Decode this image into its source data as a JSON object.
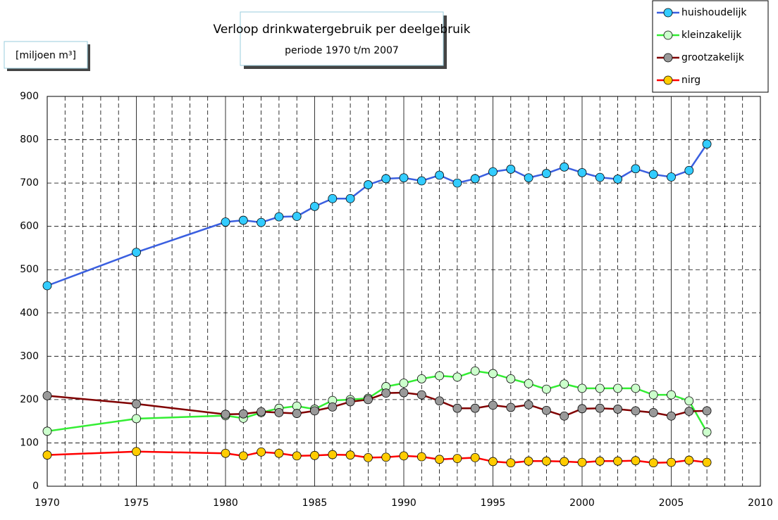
{
  "chart_data": {
    "type": "line",
    "title": "Verloop drinkwatergebruik per deelgebruik",
    "subtitle": "periode 1970 t/m 2007",
    "ylabel": "[miljoen m³]",
    "x": [
      1970,
      1975,
      1980,
      1981,
      1982,
      1983,
      1984,
      1985,
      1986,
      1987,
      1988,
      1989,
      1990,
      1991,
      1992,
      1993,
      1994,
      1995,
      1996,
      1997,
      1998,
      1999,
      2000,
      2001,
      2002,
      2003,
      2004,
      2005,
      2006,
      2007
    ],
    "series": [
      {
        "name": "huishoudelijk",
        "color": "#3a5fe0",
        "marker_color": "#33ccff",
        "values": [
          463,
          540,
          610,
          614,
          609,
          622,
          623,
          646,
          664,
          664,
          696,
          710,
          712,
          705,
          718,
          700,
          710,
          726,
          732,
          712,
          722,
          737,
          724,
          713,
          709,
          733,
          720,
          714,
          729,
          790
        ]
      },
      {
        "name": "kleinzakelijk",
        "color": "#33ee33",
        "marker_color": "#ccffcc",
        "values": [
          127,
          156,
          163,
          157,
          170,
          180,
          185,
          178,
          198,
          200,
          203,
          230,
          238,
          248,
          255,
          252,
          266,
          260,
          248,
          237,
          224,
          236,
          226,
          226,
          226,
          226,
          211,
          211,
          197,
          125
        ]
      },
      {
        "name": "grootzakelijk",
        "color": "#800000",
        "marker_color": "#999999",
        "values": [
          209,
          190,
          166,
          167,
          172,
          170,
          168,
          174,
          183,
          195,
          200,
          215,
          216,
          211,
          197,
          180,
          180,
          187,
          182,
          188,
          175,
          162,
          179,
          180,
          178,
          174,
          170,
          162,
          173,
          174
        ]
      },
      {
        "name": "nirg",
        "color": "#ff0000",
        "marker_color": "#ffcc00",
        "values": [
          72,
          80,
          76,
          70,
          79,
          76,
          70,
          71,
          73,
          72,
          66,
          67,
          70,
          68,
          62,
          64,
          66,
          57,
          54,
          58,
          58,
          57,
          55,
          58,
          58,
          59,
          54,
          55,
          60,
          55
        ]
      }
    ],
    "xlim": [
      1970,
      2010
    ],
    "xticks": [
      1970,
      1975,
      1980,
      1985,
      1990,
      1995,
      2000,
      2005,
      2010
    ],
    "x_minor_ticks": [
      1971,
      1972,
      1973,
      1974,
      1976,
      1977,
      1978,
      1979,
      1981,
      1982,
      1983,
      1984,
      1986,
      1987,
      1988,
      1989,
      1991,
      1992,
      1993,
      1994,
      1996,
      1997,
      1998,
      1999,
      2001,
      2002,
      2003,
      2004,
      2006,
      2007,
      2008,
      2009
    ],
    "ylim": [
      0,
      900
    ],
    "yticks": [
      0,
      100,
      200,
      300,
      400,
      500,
      600,
      700,
      800,
      900
    ],
    "grid": true,
    "legend": "top-right"
  }
}
